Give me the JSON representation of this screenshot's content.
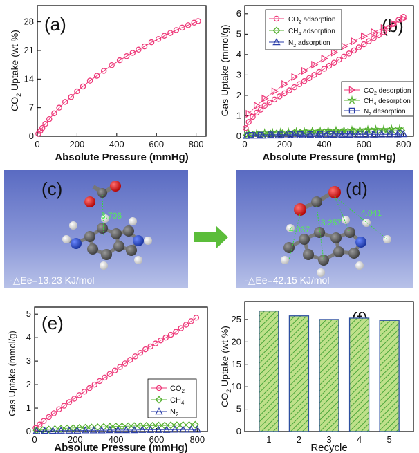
{
  "chart_data": [
    {
      "panel": "(a)",
      "type": "scatter",
      "xlabel": "Absolute Pressure (mmHg)",
      "ylabel": "CO2 Uptake (wt %)",
      "xlim": [
        0,
        850
      ],
      "ylim": [
        0,
        32
      ],
      "xticks": [
        "0",
        "200",
        "400",
        "600",
        "800"
      ],
      "yticks": [
        "0",
        "7",
        "14",
        "21",
        "28"
      ],
      "color": "#ee3a7a",
      "marker": "circle-line",
      "series": [
        {
          "x": [
            5,
            15,
            25,
            40,
            60,
            85,
            110,
            140,
            170,
            200,
            230,
            265,
            300,
            335,
            375,
            415,
            450,
            480,
            510,
            540,
            575,
            610,
            640,
            670,
            700,
            730,
            760,
            790,
            810
          ],
          "y": [
            0.6,
            1.3,
            2.0,
            3.0,
            4.2,
            5.6,
            7.0,
            8.4,
            9.6,
            11.0,
            12.2,
            13.6,
            14.8,
            16.0,
            17.4,
            18.6,
            19.6,
            20.4,
            21.2,
            22.0,
            23.0,
            23.8,
            24.6,
            25.3,
            26.0,
            26.6,
            27.2,
            27.8,
            28.2
          ]
        }
      ]
    },
    {
      "panel": "(b)",
      "type": "scatter",
      "xlabel": "Absolute Pressure (mmHg)",
      "ylabel": "Gas Uptake (mmol/g)",
      "xlim": [
        0,
        850
      ],
      "ylim": [
        0,
        6.4
      ],
      "xticks": [
        "0",
        "200",
        "400",
        "600",
        "800"
      ],
      "yticks": [
        "0",
        "1",
        "2",
        "3",
        "4",
        "5",
        "6"
      ],
      "legend_top": [
        "CO",
        "2",
        " adsorption",
        "CH",
        "4",
        " adsorption",
        "N",
        "2",
        " adsorption"
      ],
      "legend_bottom": [
        "CO",
        "2",
        " desorption",
        "CH",
        "4",
        " desorption",
        "N",
        "2",
        " desorption"
      ],
      "series": [
        {
          "gas": "CO2",
          "mode": "adsorption",
          "color": "#ee3a7a",
          "marker": "circle",
          "x": [
            5,
            20,
            40,
            60,
            80,
            100,
            125,
            150,
            175,
            200,
            225,
            250,
            275,
            300,
            325,
            350,
            375,
            400,
            425,
            450,
            475,
            500,
            525,
            550,
            575,
            600,
            625,
            650,
            675,
            700,
            725,
            750,
            775,
            800
          ],
          "y": [
            0.4,
            0.7,
            0.95,
            1.15,
            1.3,
            1.5,
            1.65,
            1.8,
            1.95,
            2.1,
            2.25,
            2.4,
            2.55,
            2.7,
            2.85,
            3.0,
            3.15,
            3.3,
            3.45,
            3.6,
            3.75,
            3.9,
            4.05,
            4.2,
            4.35,
            4.5,
            4.65,
            4.8,
            4.95,
            5.1,
            5.3,
            5.5,
            5.7,
            5.85
          ]
        },
        {
          "gas": "CO2",
          "mode": "desorption",
          "color": "#ee3a7a",
          "marker": "triangle-right",
          "x": [
            20,
            60,
            100,
            150,
            200,
            250,
            300,
            350,
            400,
            450,
            500,
            550,
            600,
            650,
            700,
            750,
            800
          ],
          "y": [
            1.1,
            1.5,
            1.85,
            2.2,
            2.55,
            2.9,
            3.2,
            3.5,
            3.8,
            4.1,
            4.4,
            4.65,
            4.9,
            5.1,
            5.3,
            5.5,
            5.75
          ]
        },
        {
          "gas": "CH4",
          "mode": "adsorption",
          "color": "#55b030",
          "marker": "diamond",
          "x": [
            10,
            40,
            70,
            100,
            130,
            160,
            190,
            220,
            250,
            280,
            310,
            340,
            370,
            400,
            430,
            460,
            490,
            520,
            550,
            580,
            610,
            640,
            670,
            700,
            730,
            760,
            790
          ],
          "y": [
            0.05,
            0.08,
            0.1,
            0.12,
            0.13,
            0.14,
            0.15,
            0.16,
            0.17,
            0.18,
            0.19,
            0.2,
            0.2,
            0.21,
            0.22,
            0.22,
            0.23,
            0.23,
            0.24,
            0.24,
            0.25,
            0.25,
            0.26,
            0.26,
            0.27,
            0.27,
            0.28
          ]
        },
        {
          "gas": "CH4",
          "mode": "desorption",
          "color": "#55b030",
          "marker": "star",
          "x": [
            20,
            60,
            100,
            140,
            180,
            220,
            260,
            300,
            340,
            380,
            420,
            460,
            500,
            540,
            580,
            620,
            660,
            700,
            740,
            780
          ],
          "y": [
            0.12,
            0.14,
            0.16,
            0.17,
            0.19,
            0.2,
            0.22,
            0.23,
            0.24,
            0.25,
            0.27,
            0.28,
            0.29,
            0.3,
            0.31,
            0.32,
            0.33,
            0.33,
            0.34,
            0.35
          ]
        },
        {
          "gas": "N2",
          "mode": "adsorption",
          "color": "#2b3ea8",
          "marker": "triangle",
          "x": [
            10,
            50,
            90,
            130,
            170,
            210,
            250,
            290,
            330,
            370,
            410,
            450,
            490,
            530,
            570,
            610,
            650,
            690,
            730,
            770,
            800
          ],
          "y": [
            0.02,
            0.03,
            0.03,
            0.04,
            0.04,
            0.05,
            0.05,
            0.05,
            0.06,
            0.06,
            0.06,
            0.07,
            0.07,
            0.07,
            0.08,
            0.08,
            0.08,
            0.09,
            0.09,
            0.09,
            0.1
          ]
        },
        {
          "gas": "N2",
          "mode": "desorption",
          "color": "#2b3ea8",
          "marker": "square",
          "x": [
            30,
            80,
            130,
            180,
            230,
            280,
            330,
            380,
            430,
            480,
            530,
            580,
            630,
            680,
            730,
            780
          ],
          "y": [
            0.06,
            0.07,
            0.08,
            0.08,
            0.09,
            0.1,
            0.1,
            0.11,
            0.11,
            0.12,
            0.12,
            0.13,
            0.13,
            0.14,
            0.14,
            0.15
          ]
        }
      ]
    },
    {
      "panel": "(e)",
      "type": "scatter",
      "xlabel": "Absolute Pressure (mmHg)",
      "ylabel": "Gas Uptake (mmol/g)",
      "xlim": [
        0,
        850
      ],
      "ylim": [
        0,
        5.3
      ],
      "xticks": [
        "0",
        "200",
        "400",
        "600",
        "800"
      ],
      "yticks": [
        "0",
        "1",
        "2",
        "3",
        "4",
        "5"
      ],
      "legend": [
        [
          "CO",
          "2"
        ],
        [
          "CH",
          "4"
        ],
        [
          "N",
          "2"
        ]
      ],
      "series": [
        {
          "gas": "CO2",
          "color": "#ee3a7a",
          "marker": "circle-line",
          "x": [
            5,
            25,
            45,
            70,
            95,
            120,
            145,
            170,
            195,
            220,
            245,
            270,
            295,
            320,
            345,
            370,
            395,
            420,
            445,
            470,
            495,
            520,
            545,
            570,
            595,
            620,
            645,
            670,
            695,
            720,
            745,
            770,
            795
          ],
          "y": [
            0.15,
            0.3,
            0.45,
            0.62,
            0.78,
            0.95,
            1.1,
            1.25,
            1.4,
            1.55,
            1.7,
            1.85,
            2.0,
            2.15,
            2.3,
            2.45,
            2.6,
            2.75,
            2.9,
            3.05,
            3.2,
            3.35,
            3.5,
            3.62,
            3.75,
            3.88,
            4.0,
            4.12,
            4.25,
            4.4,
            4.55,
            4.7,
            4.85
          ]
        },
        {
          "gas": "CH4",
          "color": "#55b030",
          "marker": "diamond",
          "x": [
            10,
            40,
            70,
            100,
            130,
            160,
            190,
            220,
            250,
            280,
            310,
            340,
            370,
            400,
            430,
            460,
            490,
            520,
            550,
            580,
            610,
            640,
            670,
            700,
            730,
            760,
            790
          ],
          "y": [
            0.05,
            0.07,
            0.09,
            0.11,
            0.12,
            0.14,
            0.15,
            0.16,
            0.17,
            0.18,
            0.19,
            0.2,
            0.21,
            0.22,
            0.22,
            0.23,
            0.24,
            0.24,
            0.25,
            0.25,
            0.26,
            0.26,
            0.27,
            0.27,
            0.28,
            0.28,
            0.29
          ]
        },
        {
          "gas": "N2",
          "color": "#2b3ea8",
          "marker": "triangle",
          "x": [
            10,
            50,
            90,
            130,
            170,
            210,
            250,
            290,
            330,
            370,
            410,
            450,
            490,
            530,
            570,
            610,
            650,
            690,
            730,
            770,
            800
          ],
          "y": [
            0.02,
            0.03,
            0.03,
            0.04,
            0.04,
            0.04,
            0.05,
            0.05,
            0.05,
            0.06,
            0.06,
            0.06,
            0.06,
            0.07,
            0.07,
            0.07,
            0.07,
            0.08,
            0.08,
            0.08,
            0.08
          ]
        }
      ]
    },
    {
      "panel": "(f)",
      "type": "bar",
      "xlabel": "Recycle",
      "ylabel": "CO2 Uptake (wt %)",
      "categories": [
        "1",
        "2",
        "3",
        "4",
        "5"
      ],
      "values": [
        26.9,
        25.8,
        25.0,
        25.3,
        24.8
      ],
      "ylim": [
        0,
        29
      ],
      "yticks": [
        "0",
        "5",
        "10",
        "15",
        "20",
        "25"
      ],
      "bar_fill": "#bfe08a",
      "bar_hatch": "#4aa63a",
      "bar_edge": "#2e50a0"
    }
  ],
  "panels": {
    "a": "(a)",
    "b": "(b)",
    "c": "(c)",
    "d": "(d)",
    "e": "(e)",
    "f": "(f)"
  },
  "molecular": {
    "c": {
      "distance": "3.706",
      "energy": "-△Ee=13.23 KJ/mol"
    },
    "d": {
      "distances": [
        "4.037",
        "3.257",
        "4.041"
      ],
      "energy": "-△Ee=42.15 KJ/mol"
    },
    "arrow_color": "#5bbd3a",
    "background": "#6b7fcc"
  }
}
